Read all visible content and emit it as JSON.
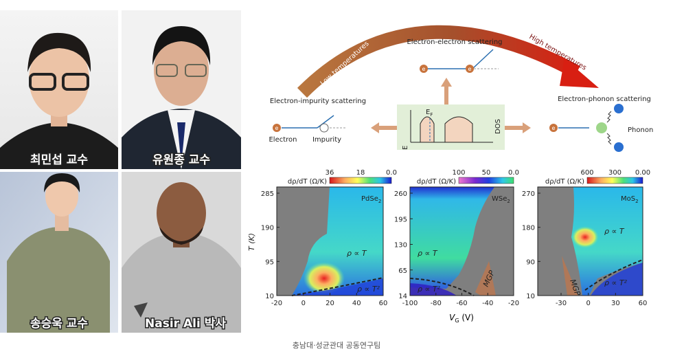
{
  "photos": [
    {
      "caption": "최민섭 교수"
    },
    {
      "caption": "유원종 교수"
    },
    {
      "caption": "송승욱 교수"
    },
    {
      "caption": "Nasir Ali 박사"
    }
  ],
  "diagram": {
    "low_label": "Low temperatures",
    "high_label": "High temperatures",
    "ee": "Electron-electron scattering",
    "ei": "Electron-impurity scattering",
    "ep": "Electron-phonon scattering",
    "electron": "Electron",
    "impurity": "Impurity",
    "phonon": "Phonon",
    "dos": "DOS",
    "e_axis": "E",
    "ef": "E",
    "ef_sub": "F",
    "e_marker": "e"
  },
  "panels": [
    {
      "cbar_label": "dρ/dT (Ω/K)",
      "cbar_ticks": [
        "36",
        "18",
        "0.0"
      ],
      "material": "PdSe",
      "material_sub": "2",
      "yticks": [
        "285",
        "190",
        "95",
        "10"
      ],
      "xticks": [
        "-20",
        "0",
        "20",
        "40",
        "60"
      ],
      "annotations": [
        "ρ ∝ T",
        "ρ ∝ T²"
      ]
    },
    {
      "cbar_label": "dρ/dT (Ω/K)",
      "cbar_ticks": [
        "100",
        "50",
        "0.0"
      ],
      "material": "WSe",
      "material_sub": "2",
      "yticks": [
        "260",
        "195",
        "130",
        "65",
        "14"
      ],
      "xticks": [
        "-100",
        "-80",
        "-60",
        "-40",
        "-20"
      ],
      "annotations": [
        "ρ ∝ T",
        "ρ ∝ T²",
        "MGP"
      ]
    },
    {
      "cbar_label": "dρ/dT (Ω/K)",
      "cbar_ticks": [
        "600",
        "300",
        "0.00"
      ],
      "material": "MoS",
      "material_sub": "2",
      "yticks": [
        "270",
        "180",
        "90",
        "10"
      ],
      "xticks": [
        "-30",
        "0",
        "30",
        "60"
      ],
      "annotations": [
        "ρ ∝ T",
        "ρ ∝ T²",
        "MGP"
      ]
    }
  ],
  "y_label": "T (K)",
  "x_label": "V",
  "x_label_sub": "G",
  "x_label_unit": " (V)",
  "caption": "충남대·성균관대 공동연구팀"
}
